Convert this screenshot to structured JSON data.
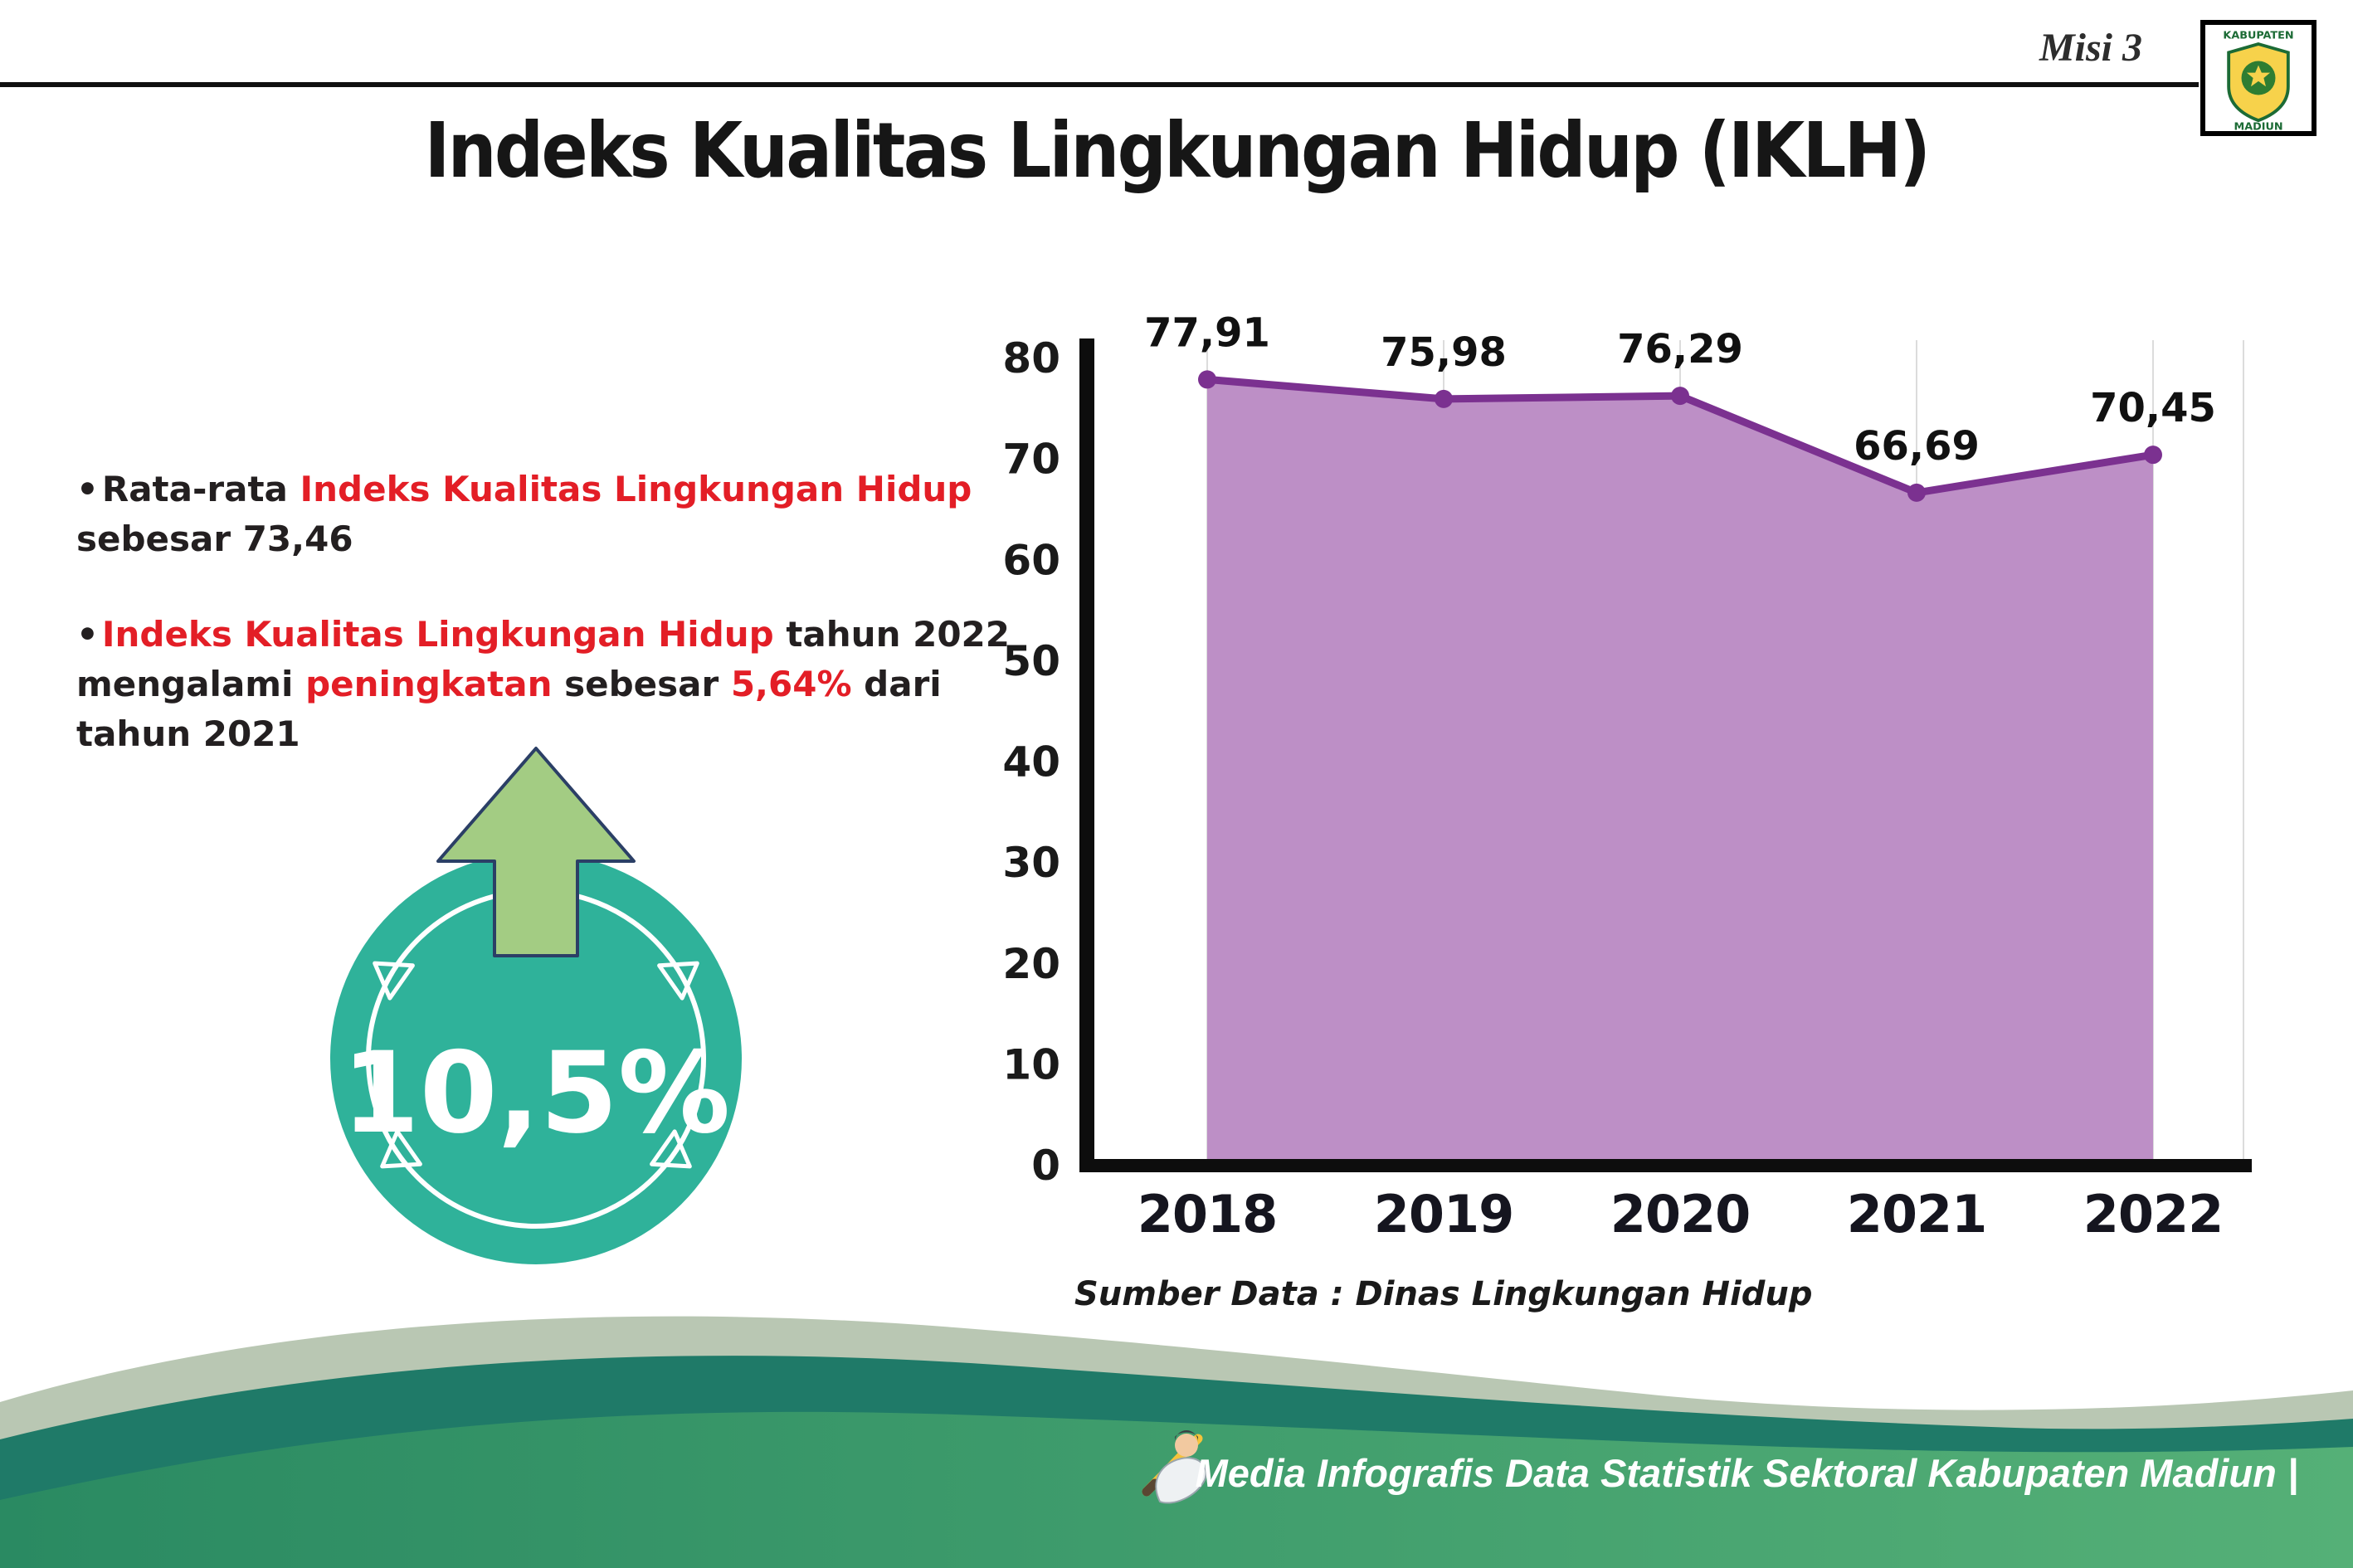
{
  "header": {
    "misi_label": "Misi 3",
    "title": "Indeks Kualitas Lingkungan Hidup (IKLH)"
  },
  "logo": {
    "name": "Kabupaten Madiun",
    "top_text": "KABUPATEN",
    "bottom_text": "MADIUN"
  },
  "bullets": [
    {
      "segments": [
        {
          "text": "Rata-rata ",
          "color": "dark"
        },
        {
          "text": "Indeks Kualitas Lingkungan Hidup",
          "color": "red"
        },
        {
          "text": " sebesar 73,46",
          "color": "dark"
        }
      ]
    },
    {
      "segments": [
        {
          "text": "Indeks Kualitas Lingkungan Hidup",
          "color": "red"
        },
        {
          "text": " tahun 2022 mengalami ",
          "color": "dark"
        },
        {
          "text": "peningkatan",
          "color": "red"
        },
        {
          "text": " sebesar ",
          "color": "dark"
        },
        {
          "text": "5,64%",
          "color": "red"
        },
        {
          "text": " dari tahun 2021",
          "color": "dark"
        }
      ]
    }
  ],
  "badge": {
    "value": "10,5%"
  },
  "chart_data": {
    "type": "area",
    "title": "",
    "categories": [
      "2018",
      "2019",
      "2020",
      "2021",
      "2022"
    ],
    "values": [
      77.91,
      75.98,
      76.29,
      66.69,
      70.45
    ],
    "value_labels": [
      "77,91",
      "75,98",
      "76,29",
      "66,69",
      "70,45"
    ],
    "ylim": [
      0,
      80
    ],
    "yticks": [
      0,
      10,
      20,
      30,
      40,
      50,
      60,
      70,
      80
    ],
    "grid": "vertical",
    "legend": "none",
    "area_color": "#bd8fc6",
    "line_color": "#7b3190",
    "source": "Sumber Data : Dinas Lingkungan Hidup"
  },
  "footer": {
    "text": "Media Infografis Data Statistik Sektoral Kabupaten Madiun |"
  },
  "colors": {
    "accent_red": "#e31e26",
    "badge_teal": "#2fb29a",
    "arrow_green": "#a3cc83",
    "footer_dark_teal": "#1f7a68",
    "footer_green_left": "#2a8a62",
    "footer_green_right": "#55b077",
    "footer_pale": "#b9c7b3"
  }
}
